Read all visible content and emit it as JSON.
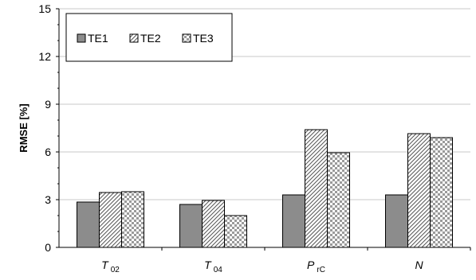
{
  "chart_data": {
    "type": "bar",
    "title": "",
    "xlabel": "",
    "ylabel": "RMSE [%]",
    "ylim": [
      0,
      15
    ],
    "yticks": [
      "0",
      "3",
      "6",
      "9",
      "12",
      "15"
    ],
    "grid": true,
    "legend_position": "top-left",
    "categories": [
      {
        "main": "T",
        "sub": "02"
      },
      {
        "main": "T",
        "sub": "04"
      },
      {
        "main": "P",
        "sub": "rC"
      },
      {
        "main": "N",
        "sub": ""
      }
    ],
    "series": [
      {
        "name": "TE1",
        "values": [
          2.85,
          2.7,
          3.3,
          3.3
        ],
        "pattern": "solid",
        "color": "#8c8c8c"
      },
      {
        "name": "TE2",
        "values": [
          3.45,
          2.95,
          7.4,
          7.15
        ],
        "pattern": "diagonal",
        "color": "#ffffff"
      },
      {
        "name": "TE3",
        "values": [
          3.5,
          2.0,
          5.95,
          6.9
        ],
        "pattern": "checker",
        "color": "#ffffff"
      }
    ]
  }
}
